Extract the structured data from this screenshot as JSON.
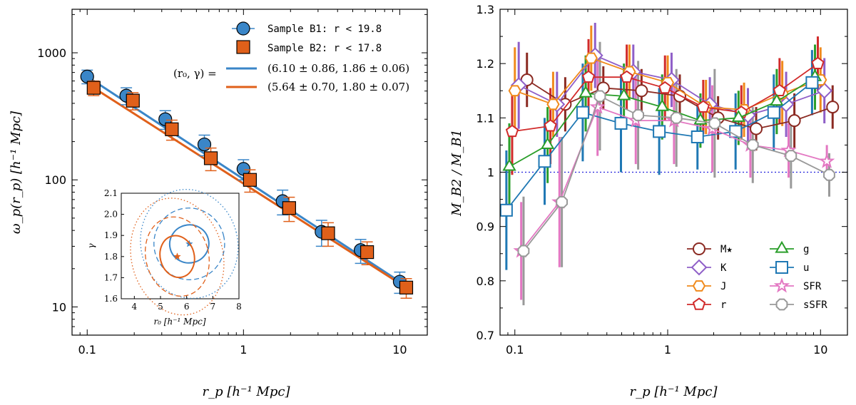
{
  "chart_data": [
    {
      "id": "left",
      "type": "scatter",
      "xscale": "log",
      "yscale": "log",
      "xlim": [
        0.08,
        15
      ],
      "ylim": [
        6,
        2200
      ],
      "xticks": [
        0.1,
        1,
        10
      ],
      "xticklabels": [
        "0.1",
        "1",
        "10"
      ],
      "yticks": [
        10,
        100,
        1000
      ],
      "yticklabels": [
        "10",
        "100",
        "1000"
      ],
      "xlabel": "r_p  [h⁻¹ Mpc]",
      "ylabel": "ω_p(r_p)  [h⁻¹ Mpc]",
      "series": [
        {
          "name": "Sample B1: r < 19.8",
          "color": "#3a86c8",
          "marker": "circle",
          "x": [
            0.1,
            0.178,
            0.316,
            0.562,
            1.0,
            1.78,
            3.16,
            5.62,
            10.0
          ],
          "y": [
            650,
            460,
            300,
            190,
            122,
            68,
            39,
            28,
            15.8
          ],
          "err": [
            80,
            70,
            50,
            35,
            22,
            15,
            9,
            6,
            3
          ]
        },
        {
          "name": "Sample B2: r < 17.8",
          "color": "#e0601a",
          "marker": "square",
          "x": [
            0.11,
            0.196,
            0.348,
            0.618,
            1.1,
            1.96,
            3.48,
            6.18,
            11.0
          ],
          "y": [
            530,
            420,
            250,
            148,
            100,
            60,
            38,
            27,
            14.2
          ],
          "err": [
            70,
            65,
            45,
            30,
            20,
            13,
            8,
            5.5,
            2.5
          ]
        }
      ],
      "fits": [
        {
          "color": "#3a86c8",
          "r0": 6.1,
          "gamma": 1.86,
          "label": "(6.10 ± 0.86, 1.86 ± 0.06)"
        },
        {
          "color": "#e0601a",
          "r0": 5.64,
          "gamma": 1.8,
          "label": "(5.64 ± 0.70, 1.80 ± 0.07)"
        }
      ],
      "fit_label_prefix": "(r₀, γ) =",
      "inset": {
        "xlim": [
          3.5,
          8
        ],
        "ylim": [
          1.6,
          2.1
        ],
        "xticks": [
          4,
          5,
          6,
          7,
          8
        ],
        "xticklabels": [
          "4",
          "5",
          "6",
          "7",
          "8"
        ],
        "yticks": [
          1.6,
          1.7,
          1.8,
          1.9,
          2.0,
          2.1
        ],
        "yticklabels": [
          "1.6",
          "1.7",
          "1.8",
          "1.9",
          "2.0",
          "2.1"
        ],
        "xlabel": "r₀  [h⁻¹ Mpc]",
        "ylabel": "γ",
        "contours": [
          {
            "color": "#3a86c8",
            "center": [
              6.1,
              1.86
            ],
            "sigmas": [
              [
                0.75,
                0.09
              ],
              [
                1.35,
                0.17
              ],
              [
                1.85,
                0.26
              ]
            ],
            "tilt": -0.25
          },
          {
            "color": "#e0601a",
            "center": [
              5.64,
              1.8
            ],
            "sigmas": [
              [
                0.65,
                0.1
              ],
              [
                1.2,
                0.19
              ],
              [
                1.75,
                0.28
              ]
            ],
            "tilt": -0.25
          }
        ]
      }
    },
    {
      "id": "right",
      "type": "line",
      "xscale": "log",
      "xlim": [
        0.08,
        15
      ],
      "ylim": [
        0.7,
        1.3
      ],
      "xticks": [
        0.1,
        1,
        10
      ],
      "xticklabels": [
        "0.1",
        "1",
        "10"
      ],
      "yticks": [
        0.7,
        0.8,
        0.9,
        1.0,
        1.1,
        1.2,
        1.3
      ],
      "yticklabels": [
        "0.7",
        "0.8",
        "0.9",
        "1",
        "1.1",
        "1.2",
        "1.3"
      ],
      "xlabel": "r_p  [h⁻¹ Mpc]",
      "ylabel": "M_B2 / M_B1",
      "reference_line": 1.0,
      "x": [
        0.1,
        0.178,
        0.316,
        0.562,
        1.0,
        1.78,
        3.16,
        5.62,
        10.0
      ],
      "series": [
        {
          "name": "M★",
          "color": "#8b2a22",
          "marker": "circle",
          "offset": 1.2,
          "y": [
            1.17,
            1.125,
            1.155,
            1.15,
            1.14,
            1.1,
            1.08,
            1.095,
            1.12
          ],
          "err": [
            0.05,
            0.05,
            0.04,
            0.04,
            0.04,
            0.04,
            0.04,
            0.05,
            0.04
          ]
        },
        {
          "name": "K",
          "color": "#8f5fc8",
          "marker": "diamond",
          "offset": 1.06,
          "y": [
            1.16,
            1.125,
            1.215,
            1.185,
            1.17,
            1.125,
            1.105,
            1.125,
            1.15
          ],
          "err": [
            0.08,
            0.06,
            0.06,
            0.05,
            0.05,
            0.05,
            0.05,
            0.06,
            0.06
          ]
        },
        {
          "name": "J",
          "color": "#f08a1c",
          "marker": "hexagon",
          "offset": 1.0,
          "y": [
            1.15,
            1.125,
            1.21,
            1.185,
            1.165,
            1.12,
            1.115,
            1.145,
            1.17
          ],
          "err": [
            0.08,
            0.06,
            0.06,
            0.05,
            0.05,
            0.05,
            0.05,
            0.06,
            0.06
          ]
        },
        {
          "name": "r",
          "color": "#d12a2a",
          "marker": "pentagon",
          "offset": 0.96,
          "y": [
            1.075,
            1.085,
            1.175,
            1.175,
            1.155,
            1.12,
            1.11,
            1.15,
            1.2
          ],
          "err": [
            0.08,
            0.07,
            0.07,
            0.06,
            0.06,
            0.05,
            0.05,
            0.06,
            0.05
          ]
        },
        {
          "name": "g",
          "color": "#2a9e2a",
          "marker": "triangle",
          "offset": 0.92,
          "y": [
            1.01,
            1.05,
            1.145,
            1.14,
            1.12,
            1.095,
            1.1,
            1.13,
            1.175
          ],
          "err": [
            0.08,
            0.07,
            0.07,
            0.06,
            0.06,
            0.05,
            0.05,
            0.06,
            0.06
          ]
        },
        {
          "name": "u",
          "color": "#1f78b4",
          "marker": "square",
          "offset": 0.88,
          "y": [
            0.93,
            1.02,
            1.11,
            1.09,
            1.075,
            1.065,
            1.075,
            1.11,
            1.165
          ],
          "err": [
            0.11,
            0.08,
            0.09,
            0.09,
            0.08,
            0.06,
            0.07,
            0.07,
            0.06
          ]
        },
        {
          "name": "SFR",
          "color": "#e377c2",
          "marker": "star",
          "offset": 1.1,
          "y": [
            0.855,
            0.945,
            1.12,
            1.095,
            1.095,
            1.08,
            1.05,
            1.04,
            1.02
          ],
          "err": [
            0.09,
            0.12,
            0.09,
            0.08,
            0.08,
            0.08,
            0.06,
            0.05,
            0.03
          ]
        },
        {
          "name": "sSFR",
          "color": "#999999",
          "marker": "octagon",
          "offset": 1.14,
          "y": [
            0.855,
            0.945,
            1.14,
            1.105,
            1.1,
            1.09,
            1.05,
            1.03,
            0.995
          ],
          "err": [
            0.1,
            0.12,
            0.1,
            0.1,
            0.09,
            0.1,
            0.07,
            0.06,
            0.04
          ]
        }
      ]
    }
  ]
}
